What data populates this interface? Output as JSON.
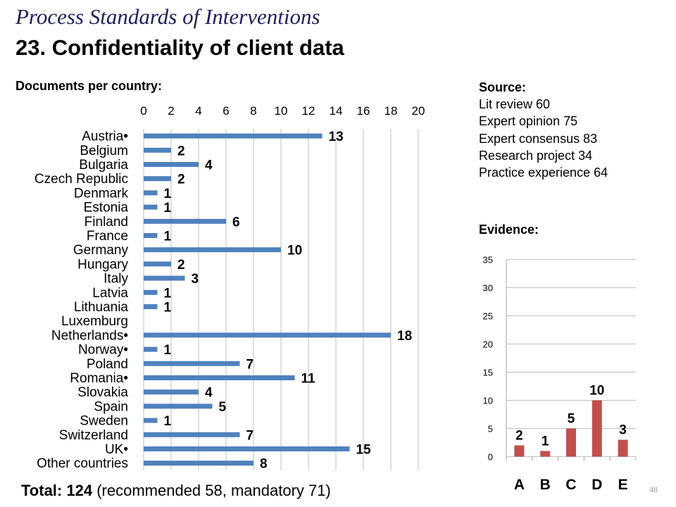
{
  "title": "Process Standards of Interventions",
  "subtitle": "23. Confidentiality of client data",
  "documents_label": "Documents per country:",
  "source": {
    "heading": "Source:",
    "lines": [
      "Lit review 60",
      "Expert opinion 75",
      "Expert consensus 83",
      "Research project 34",
      "Practice experience 64"
    ]
  },
  "evidence_label": "Evidence:",
  "total": {
    "label": "Total:",
    "value": "124",
    "detail": "(recommended 58, mandatory 71)"
  },
  "page_number": "48",
  "colors": {
    "bar_blue": "#4f81bd",
    "bar_red": "#c0504d",
    "grid": "#bfbfbf",
    "axis": "#a6a6a6"
  },
  "chart_data": [
    {
      "type": "bar",
      "orientation": "horizontal",
      "categories": [
        "Austria•",
        "Belgium",
        "Bulgaria",
        "Czech Republic",
        "Denmark",
        "Estonia",
        "Finland",
        "France",
        "Germany",
        "Hungary",
        "Italy",
        "Latvia",
        "Lithuania",
        "Luxemburg",
        "Netherlands•",
        "Norway•",
        "Poland",
        "Romania•",
        "Slovakia",
        "Spain",
        "Sweden",
        "Switzerland",
        "UK•",
        "Other countries"
      ],
      "values": [
        13,
        2,
        4,
        2,
        1,
        1,
        6,
        1,
        10,
        2,
        3,
        1,
        1,
        0,
        18,
        1,
        7,
        11,
        4,
        5,
        1,
        7,
        15,
        8
      ],
      "data_labels": [
        "13",
        "2",
        "4",
        "2",
        "1",
        "1",
        "6",
        "1",
        "10",
        "2",
        "3",
        "1",
        "1",
        "",
        "18",
        "1",
        "7",
        "11",
        "4",
        "5",
        "1",
        "7",
        "15",
        "8"
      ],
      "xlim": [
        0,
        20
      ],
      "xticks": [
        "0",
        "2",
        "4",
        "6",
        "8",
        "10",
        "12",
        "14",
        "16",
        "18",
        "20"
      ],
      "x_axis_position": "top",
      "grid": true,
      "legend": "none"
    },
    {
      "type": "bar",
      "orientation": "vertical",
      "categories": [
        "A",
        "B",
        "C",
        "D",
        "E"
      ],
      "values": [
        2,
        1,
        5,
        10,
        3
      ],
      "data_labels": [
        "2",
        "1",
        "5",
        "10",
        "3"
      ],
      "ylim": [
        0,
        35
      ],
      "yticks": [
        "0",
        "5",
        "10",
        "15",
        "20",
        "25",
        "30",
        "35"
      ],
      "grid": true,
      "legend": "none"
    }
  ]
}
